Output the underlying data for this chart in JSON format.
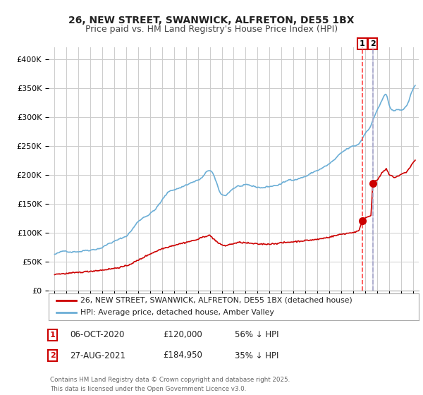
{
  "title1": "26, NEW STREET, SWANWICK, ALFRETON, DE55 1BX",
  "title2": "Price paid vs. HM Land Registry's House Price Index (HPI)",
  "legend_label1": "26, NEW STREET, SWANWICK, ALFRETON, DE55 1BX (detached house)",
  "legend_label2": "HPI: Average price, detached house, Amber Valley",
  "annotation1_date": "06-OCT-2020",
  "annotation1_price": "£120,000",
  "annotation1_hpi": "56% ↓ HPI",
  "annotation2_date": "27-AUG-2021",
  "annotation2_price": "£184,950",
  "annotation2_hpi": "35% ↓ HPI",
  "transaction1_x": 2020.77,
  "transaction1_y": 120000,
  "transaction2_x": 2021.65,
  "transaction2_y": 184950,
  "hpi_color": "#6baed6",
  "price_color": "#cc0000",
  "vline1_color": "#ff4444",
  "vline2_color": "#aaaacc",
  "footer": "Contains HM Land Registry data © Crown copyright and database right 2025.\nThis data is licensed under the Open Government Licence v3.0.",
  "ylim": [
    0,
    420000
  ],
  "xlim": [
    1994.5,
    2025.5
  ],
  "background_color": "#ffffff",
  "grid_color": "#cccccc",
  "hpi_anchors_x": [
    1995.0,
    1996.0,
    1997.0,
    1998.0,
    1999.0,
    2000.0,
    2001.0,
    2002.0,
    2003.5,
    2004.5,
    2005.5,
    2006.5,
    2007.5,
    2008.2,
    2008.8,
    2009.3,
    2009.8,
    2010.5,
    2011.0,
    2012.0,
    2013.0,
    2014.0,
    2015.0,
    2016.0,
    2017.0,
    2018.0,
    2019.0,
    2020.0,
    2020.5,
    2021.0,
    2021.5,
    2022.0,
    2022.5,
    2022.8,
    2023.0,
    2023.5,
    2024.0,
    2024.5,
    2025.0,
    2025.2
  ],
  "hpi_anchors_y": [
    62000,
    66000,
    70000,
    75000,
    82000,
    92000,
    100000,
    125000,
    150000,
    175000,
    185000,
    195000,
    205000,
    210000,
    175000,
    168000,
    178000,
    185000,
    183000,
    178000,
    180000,
    185000,
    193000,
    200000,
    210000,
    220000,
    235000,
    245000,
    250000,
    268000,
    285000,
    310000,
    330000,
    335000,
    320000,
    305000,
    308000,
    315000,
    342000,
    348000
  ],
  "price_anchors_x": [
    1995.0,
    1996.0,
    1997.0,
    1998.0,
    1999.0,
    2000.0,
    2001.0,
    2002.0,
    2003.0,
    2004.0,
    2005.0,
    2006.0,
    2007.0,
    2007.5,
    2008.0,
    2008.8,
    2009.3,
    2009.8,
    2010.5,
    2011.0,
    2012.0,
    2013.0,
    2014.0,
    2015.0,
    2016.0,
    2017.0,
    2018.0,
    2019.0,
    2020.0,
    2020.5,
    2020.77,
    2021.0,
    2021.5,
    2021.65,
    2022.0,
    2022.5,
    2022.8,
    2023.0,
    2023.5,
    2024.0,
    2024.5,
    2025.0,
    2025.2
  ],
  "price_anchors_y": [
    28000,
    29000,
    31000,
    33000,
    35000,
    38000,
    42000,
    52000,
    63000,
    72000,
    78000,
    83000,
    88000,
    93000,
    95000,
    80000,
    77000,
    80000,
    83000,
    82000,
    80000,
    80000,
    82000,
    84000,
    86000,
    88000,
    92000,
    97000,
    100000,
    103000,
    120000,
    125000,
    130000,
    184950,
    190000,
    205000,
    210000,
    200000,
    195000,
    200000,
    205000,
    220000,
    225000
  ]
}
